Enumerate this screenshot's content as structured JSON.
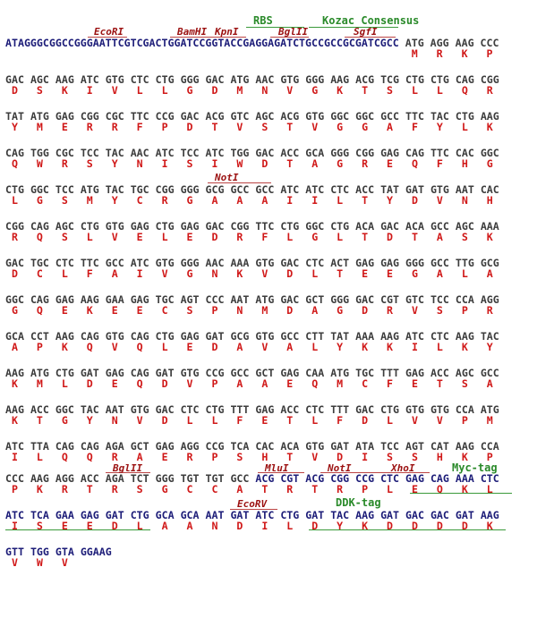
{
  "colors": {
    "vector": "#1c1c78",
    "orf": "#3c3c3c",
    "amino_acid": "#d01818",
    "site": "#9b1010",
    "feature": "#2a8a2a"
  },
  "vector_5prime": "ATAGGGCGGCCGGGAATTCGTCGACTGGATCCGGTACCGAGGAGATCTGCCGCCGCGATCGCC",
  "rows": [
    {
      "codons": [
        "ATG",
        "AGG",
        "AAG",
        "CCC"
      ],
      "aa": [
        "M",
        "R",
        "K",
        "P"
      ],
      "vector_from": 99
    },
    {
      "codons": [
        "GAC",
        "AGC",
        "AAG",
        "ATC",
        "GTG",
        "CTC",
        "CTG",
        "GGG",
        "GAC",
        "ATG",
        "AAC",
        "GTG",
        "GGG",
        "AAG",
        "ACG",
        "TCG",
        "CTG",
        "CTG",
        "CAG",
        "CGG"
      ],
      "aa": [
        "D",
        "S",
        "K",
        "I",
        "V",
        "L",
        "L",
        "G",
        "D",
        "M",
        "N",
        "V",
        "G",
        "K",
        "T",
        "S",
        "L",
        "L",
        "Q",
        "R"
      ],
      "vector_from": 99
    },
    {
      "codons": [
        "TAT",
        "ATG",
        "GAG",
        "CGG",
        "CGC",
        "TTC",
        "CCG",
        "GAC",
        "ACG",
        "GTC",
        "AGC",
        "ACG",
        "GTG",
        "GGC",
        "GGC",
        "GCC",
        "TTC",
        "TAC",
        "CTG",
        "AAG"
      ],
      "aa": [
        "Y",
        "M",
        "E",
        "R",
        "R",
        "F",
        "P",
        "D",
        "T",
        "V",
        "S",
        "T",
        "V",
        "G",
        "G",
        "A",
        "F",
        "Y",
        "L",
        "K"
      ],
      "vector_from": 99
    },
    {
      "codons": [
        "CAG",
        "TGG",
        "CGC",
        "TCC",
        "TAC",
        "AAC",
        "ATC",
        "TCC",
        "ATC",
        "TGG",
        "GAC",
        "ACC",
        "GCA",
        "GGG",
        "CGG",
        "GAG",
        "CAG",
        "TTC",
        "CAC",
        "GGC"
      ],
      "aa": [
        "Q",
        "W",
        "R",
        "S",
        "Y",
        "N",
        "I",
        "S",
        "I",
        "W",
        "D",
        "T",
        "A",
        "G",
        "R",
        "E",
        "Q",
        "F",
        "H",
        "G"
      ],
      "vector_from": 99
    },
    {
      "codons": [
        "CTG",
        "GGC",
        "TCC",
        "ATG",
        "TAC",
        "TGC",
        "CGG",
        "GGG",
        "GCG",
        "GCC",
        "GCC",
        "ATC",
        "ATC",
        "CTC",
        "ACC",
        "TAT",
        "GAT",
        "GTG",
        "AAT",
        "CAC"
      ],
      "aa": [
        "L",
        "G",
        "S",
        "M",
        "Y",
        "C",
        "R",
        "G",
        "A",
        "A",
        "A",
        "I",
        "I",
        "L",
        "T",
        "Y",
        "D",
        "V",
        "N",
        "H"
      ],
      "vector_from": 99
    },
    {
      "codons": [
        "CGG",
        "CAG",
        "AGC",
        "CTG",
        "GTG",
        "GAG",
        "CTG",
        "GAG",
        "GAC",
        "CGG",
        "TTC",
        "CTG",
        "GGC",
        "CTG",
        "ACA",
        "GAC",
        "ACA",
        "GCC",
        "AGC",
        "AAA"
      ],
      "aa": [
        "R",
        "Q",
        "S",
        "L",
        "V",
        "E",
        "L",
        "E",
        "D",
        "R",
        "F",
        "L",
        "G",
        "L",
        "T",
        "D",
        "T",
        "A",
        "S",
        "K"
      ],
      "vector_from": 99
    },
    {
      "codons": [
        "GAC",
        "TGC",
        "CTC",
        "TTC",
        "GCC",
        "ATC",
        "GTG",
        "GGG",
        "AAC",
        "AAA",
        "GTG",
        "GAC",
        "CTC",
        "ACT",
        "GAG",
        "GAG",
        "GGG",
        "GCC",
        "TTG",
        "GCG"
      ],
      "aa": [
        "D",
        "C",
        "L",
        "F",
        "A",
        "I",
        "V",
        "G",
        "N",
        "K",
        "V",
        "D",
        "L",
        "T",
        "E",
        "E",
        "G",
        "A",
        "L",
        "A"
      ],
      "vector_from": 99
    },
    {
      "codons": [
        "GGC",
        "CAG",
        "GAG",
        "AAG",
        "GAA",
        "GAG",
        "TGC",
        "AGT",
        "CCC",
        "AAT",
        "ATG",
        "GAC",
        "GCT",
        "GGG",
        "GAC",
        "CGT",
        "GTC",
        "TCC",
        "CCA",
        "AGG"
      ],
      "aa": [
        "G",
        "Q",
        "E",
        "K",
        "E",
        "E",
        "C",
        "S",
        "P",
        "N",
        "M",
        "D",
        "A",
        "G",
        "D",
        "R",
        "V",
        "S",
        "P",
        "R"
      ],
      "vector_from": 99
    },
    {
      "codons": [
        "GCA",
        "CCT",
        "AAG",
        "CAG",
        "GTG",
        "CAG",
        "CTG",
        "GAG",
        "GAT",
        "GCG",
        "GTG",
        "GCC",
        "CTT",
        "TAT",
        "AAA",
        "AAG",
        "ATC",
        "CTC",
        "AAG",
        "TAC"
      ],
      "aa": [
        "A",
        "P",
        "K",
        "Q",
        "V",
        "Q",
        "L",
        "E",
        "D",
        "A",
        "V",
        "A",
        "L",
        "Y",
        "K",
        "K",
        "I",
        "L",
        "K",
        "Y"
      ],
      "vector_from": 99
    },
    {
      "codons": [
        "AAG",
        "ATG",
        "CTG",
        "GAT",
        "GAG",
        "CAG",
        "GAT",
        "GTG",
        "CCG",
        "GCC",
        "GCT",
        "GAG",
        "CAA",
        "ATG",
        "TGC",
        "TTT",
        "GAG",
        "ACC",
        "AGC",
        "GCC"
      ],
      "aa": [
        "K",
        "M",
        "L",
        "D",
        "E",
        "Q",
        "D",
        "V",
        "P",
        "A",
        "A",
        "E",
        "Q",
        "M",
        "C",
        "F",
        "E",
        "T",
        "S",
        "A"
      ],
      "vector_from": 99
    },
    {
      "codons": [
        "AAG",
        "ACC",
        "GGC",
        "TAC",
        "AAT",
        "GTG",
        "GAC",
        "CTC",
        "CTG",
        "TTT",
        "GAG",
        "ACC",
        "CTC",
        "TTT",
        "GAC",
        "CTG",
        "GTG",
        "GTG",
        "CCA",
        "ATG"
      ],
      "aa": [
        "K",
        "T",
        "G",
        "Y",
        "N",
        "V",
        "D",
        "L",
        "L",
        "F",
        "E",
        "T",
        "L",
        "F",
        "D",
        "L",
        "V",
        "V",
        "P",
        "M"
      ],
      "vector_from": 99
    },
    {
      "codons": [
        "ATC",
        "TTA",
        "CAG",
        "CAG",
        "AGA",
        "GCT",
        "GAG",
        "AGG",
        "CCG",
        "TCA",
        "CAC",
        "ACA",
        "GTG",
        "GAT",
        "ATA",
        "TCC",
        "AGT",
        "CAT",
        "AAG",
        "CCA"
      ],
      "aa": [
        "I",
        "L",
        "Q",
        "Q",
        "R",
        "A",
        "E",
        "R",
        "P",
        "S",
        "H",
        "T",
        "V",
        "D",
        "I",
        "S",
        "S",
        "H",
        "K",
        "P"
      ],
      "vector_from": 99
    },
    {
      "codons": [
        "CCC",
        "AAG",
        "AGG",
        "ACC",
        "AGA",
        "TCT",
        "GGG",
        "TGT",
        "TGT",
        "GCC",
        "ACG",
        "CGT",
        "ACG",
        "CGG",
        "CCG",
        "CTC",
        "GAG",
        "CAG",
        "AAA",
        "CTC"
      ],
      "aa": [
        "P",
        "K",
        "R",
        "T",
        "R",
        "S",
        "G",
        "C",
        "C",
        "A",
        "T",
        "R",
        "T",
        "R",
        "P",
        "L",
        "E",
        "Q",
        "K",
        "L"
      ],
      "vector_from": 10
    },
    {
      "codons": [
        "ATC",
        "TCA",
        "GAA",
        "GAG",
        "GAT",
        "CTG",
        "GCA",
        "GCA",
        "AAT",
        "GAT",
        "ATC",
        "CTG",
        "GAT",
        "TAC",
        "AAG",
        "GAT",
        "GAC",
        "GAC",
        "GAT",
        "AAG"
      ],
      "aa": [
        "I",
        "S",
        "E",
        "E",
        "D",
        "L",
        "A",
        "A",
        "N",
        "D",
        "I",
        "L",
        "D",
        "Y",
        "K",
        "D",
        "D",
        "D",
        "D",
        "K"
      ],
      "vector_from": 0
    },
    {
      "codons": [
        "GTT",
        "TGG",
        "GTA",
        "GGAAG"
      ],
      "aa": [
        "V",
        "W",
        "V",
        ""
      ],
      "vector_from": 0
    }
  ],
  "annotations": {
    "ecori": "EcoRI",
    "bamhi": "BamHI",
    "kpni": "KpnI",
    "rbs": "RBS",
    "kozak": "Kozac Consensus",
    "bglii_1": "BglII",
    "sgfi": "SgfI",
    "noti_1": "NotI",
    "bglii_2": "BglII",
    "mlui": "MluI",
    "noti_2": "NotI",
    "xhoi": "XhoI",
    "myc": "Myc-tag",
    "ecorv": "EcoRV",
    "ddk": "DDK-tag"
  }
}
